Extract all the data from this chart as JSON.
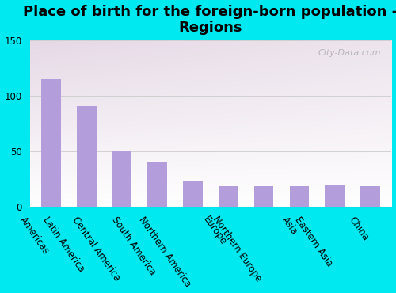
{
  "title": "Place of birth for the foreign-born population -\nRegions",
  "categories": [
    "Americas",
    "Latin America",
    "Central America",
    "South America",
    "Northern America",
    "Europe",
    "Northern Europe",
    "Asia",
    "Eastern Asia",
    "China"
  ],
  "values": [
    115,
    91,
    50,
    40,
    23,
    19,
    19,
    19,
    20,
    19
  ],
  "bar_color": "#b39ddb",
  "background_outer": "#00e8f0",
  "ylim": [
    0,
    150
  ],
  "yticks": [
    0,
    50,
    100,
    150
  ],
  "title_fontsize": 13,
  "tick_fontsize": 8.5,
  "label_rotation": -55,
  "watermark": "City-Data.com"
}
